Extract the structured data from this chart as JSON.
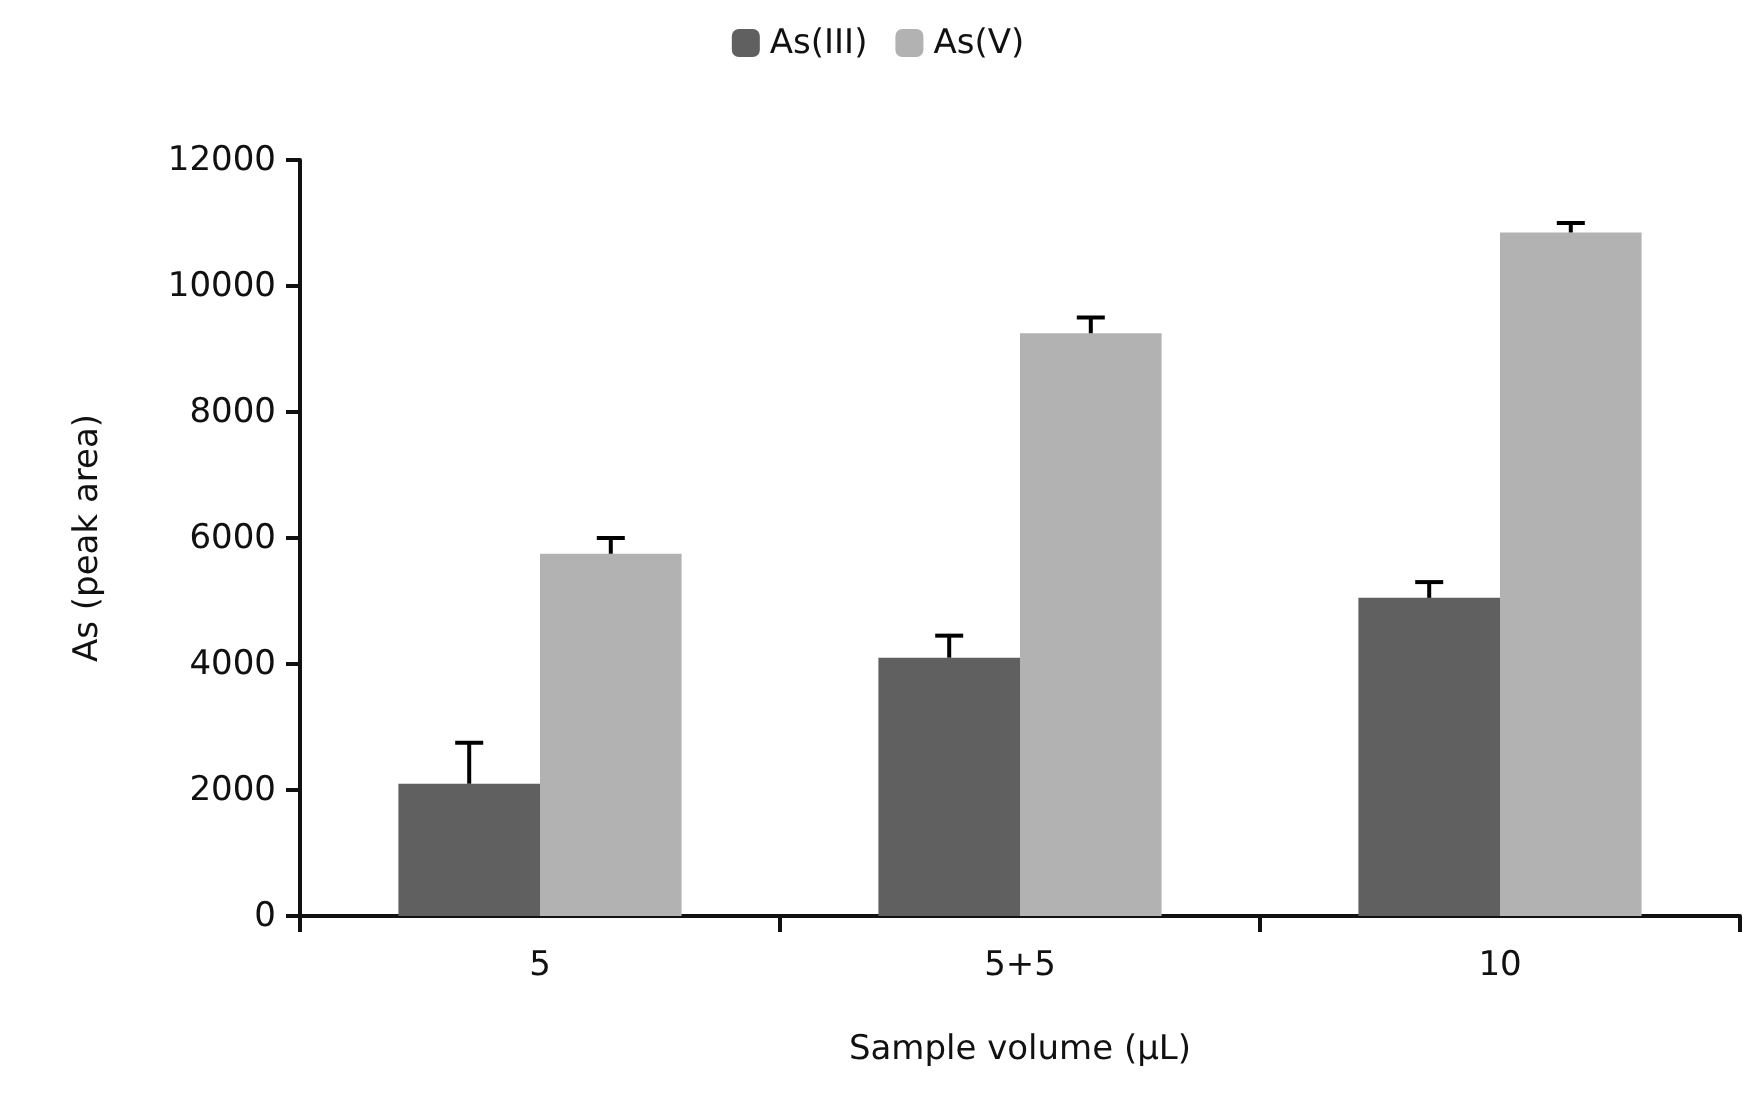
{
  "chart_data": {
    "type": "bar",
    "xlabel": "Sample volume (µL)",
    "ylabel": "As (peak area)",
    "categories": [
      "5",
      "5+5",
      "10"
    ],
    "series": [
      {
        "name": "As(III)",
        "color": "#606060",
        "values": [
          2100,
          4100,
          5050
        ],
        "errors": [
          [
            2100,
            2750
          ],
          [
            4100,
            4450
          ],
          [
            5050,
            5300
          ]
        ]
      },
      {
        "name": "As(V)",
        "color": "#b2b2b2",
        "values": [
          5750,
          9250,
          10850
        ],
        "errors": [
          [
            5750,
            6000
          ],
          [
            9250,
            9500
          ],
          [
            10850,
            11000
          ]
        ]
      }
    ],
    "ylim": [
      0,
      12000
    ],
    "yticks": [
      0,
      2000,
      4000,
      6000,
      8000,
      10000,
      12000
    ],
    "grid": false,
    "legend": "top"
  }
}
